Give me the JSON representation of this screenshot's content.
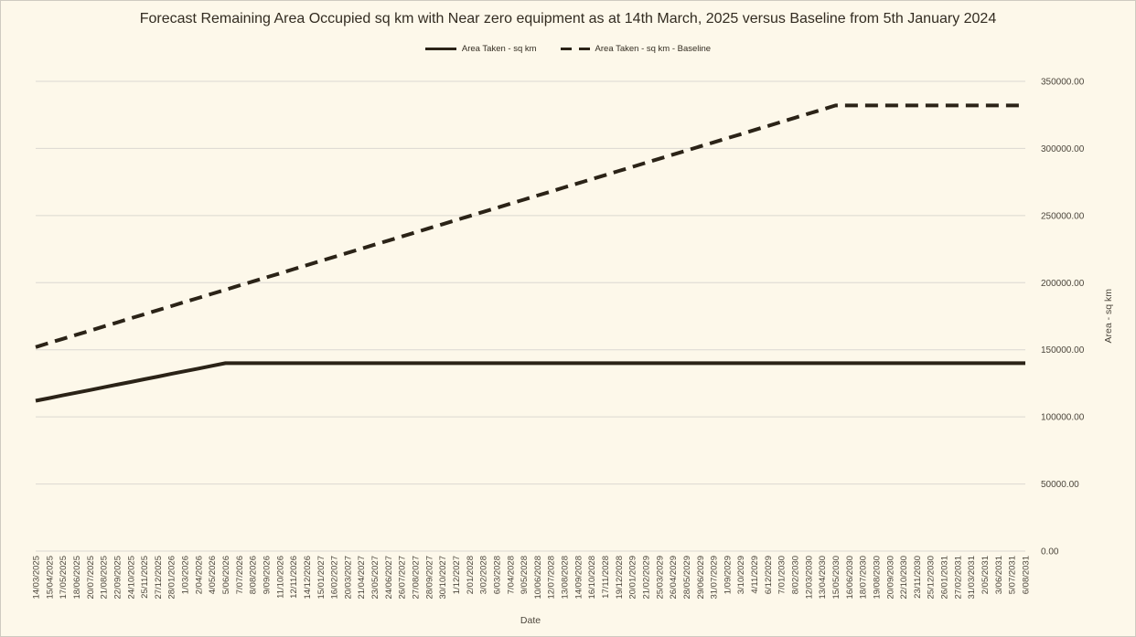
{
  "colors": {
    "background": "#FDF8EA",
    "frame_border": "#CFCBC1",
    "line": "#2B2317",
    "grid": "#DBD8D1",
    "tick_text": "#4C463C",
    "title_text": "#332C21"
  },
  "chart_data": {
    "type": "line",
    "title": "Forecast Remaining Area Occupied sq km with Near zero equipment as at 14th March, 2025 versus Baseline from 5th January 2024",
    "xlabel": "Date",
    "ylabel": "Area - sq km",
    "ylim": [
      0,
      350000
    ],
    "y_axis_side": "right",
    "grid": true,
    "legend_position": "top",
    "x_tick_rotation": 90,
    "y_ticks": [
      0,
      50000,
      100000,
      150000,
      200000,
      250000,
      300000,
      350000
    ],
    "y_tick_labels": [
      "0.00",
      "50000.00",
      "100000.00",
      "150000.00",
      "200000.00",
      "250000.00",
      "300000.00",
      "350000.00"
    ],
    "categories": [
      "14/03/2025",
      "15/04/2025",
      "17/05/2025",
      "18/06/2025",
      "20/07/2025",
      "21/08/2025",
      "22/09/2025",
      "24/10/2025",
      "25/11/2025",
      "27/12/2025",
      "28/01/2026",
      "1/03/2026",
      "2/04/2026",
      "4/05/2026",
      "5/06/2026",
      "7/07/2026",
      "8/08/2026",
      "9/09/2026",
      "11/10/2026",
      "12/11/2026",
      "14/12/2026",
      "15/01/2027",
      "16/02/2027",
      "20/03/2027",
      "21/04/2027",
      "23/05/2027",
      "24/06/2027",
      "26/07/2027",
      "27/08/2027",
      "28/09/2027",
      "30/10/2027",
      "1/12/2027",
      "2/01/2028",
      "3/02/2028",
      "6/03/2028",
      "7/04/2028",
      "9/05/2028",
      "10/06/2028",
      "12/07/2028",
      "13/08/2028",
      "14/09/2028",
      "16/10/2028",
      "17/11/2028",
      "19/12/2028",
      "20/01/2029",
      "21/02/2029",
      "25/03/2029",
      "26/04/2029",
      "28/05/2029",
      "29/06/2029",
      "31/07/2029",
      "1/09/2029",
      "3/10/2029",
      "4/11/2029",
      "6/12/2029",
      "7/01/2030",
      "8/02/2030",
      "12/03/2030",
      "13/04/2030",
      "15/05/2030",
      "16/06/2030",
      "18/07/2030",
      "19/08/2030",
      "20/09/2030",
      "22/10/2030",
      "23/11/2030",
      "25/12/2030",
      "26/01/2031",
      "27/02/2031",
      "31/03/2031",
      "2/05/2031",
      "3/06/2031",
      "5/07/2031",
      "6/08/2031"
    ],
    "series": [
      {
        "name": "Area Taken - sq km",
        "style": "solid",
        "color": "#2B2317",
        "values": [
          112000,
          114000,
          116000,
          118000,
          120000,
          122000,
          124000,
          126000,
          128000,
          130000,
          132000,
          134000,
          136000,
          138000,
          140000,
          140000,
          140000,
          140000,
          140000,
          140000,
          140000,
          140000,
          140000,
          140000,
          140000,
          140000,
          140000,
          140000,
          140000,
          140000,
          140000,
          140000,
          140000,
          140000,
          140000,
          140000,
          140000,
          140000,
          140000,
          140000,
          140000,
          140000,
          140000,
          140000,
          140000,
          140000,
          140000,
          140000,
          140000,
          140000,
          140000,
          140000,
          140000,
          140000,
          140000,
          140000,
          140000,
          140000,
          140000,
          140000,
          140000,
          140000,
          140000,
          140000,
          140000,
          140000,
          140000,
          140000,
          140000,
          140000,
          140000,
          140000,
          140000,
          140000
        ]
      },
      {
        "name": "Area Taken - sq km - Baseline",
        "style": "dashed",
        "color": "#2B2317",
        "values": [
          152000,
          155100,
          158100,
          161200,
          164200,
          167300,
          170300,
          173400,
          176400,
          179500,
          182500,
          185600,
          188600,
          191700,
          194700,
          197800,
          200800,
          203900,
          206900,
          210000,
          213000,
          216100,
          219100,
          222200,
          225200,
          228300,
          231300,
          234400,
          237400,
          240500,
          243500,
          246600,
          249600,
          252700,
          255700,
          258800,
          261800,
          264900,
          267900,
          271000,
          274000,
          277100,
          280100,
          283200,
          286200,
          289300,
          292300,
          295400,
          298400,
          301500,
          304500,
          307600,
          310600,
          313700,
          316700,
          319800,
          322800,
          325900,
          328900,
          332000,
          332000,
          332000,
          332000,
          332000,
          332000,
          332000,
          332000,
          332000,
          332000,
          332000,
          332000,
          332000,
          332000,
          332000
        ]
      }
    ]
  }
}
